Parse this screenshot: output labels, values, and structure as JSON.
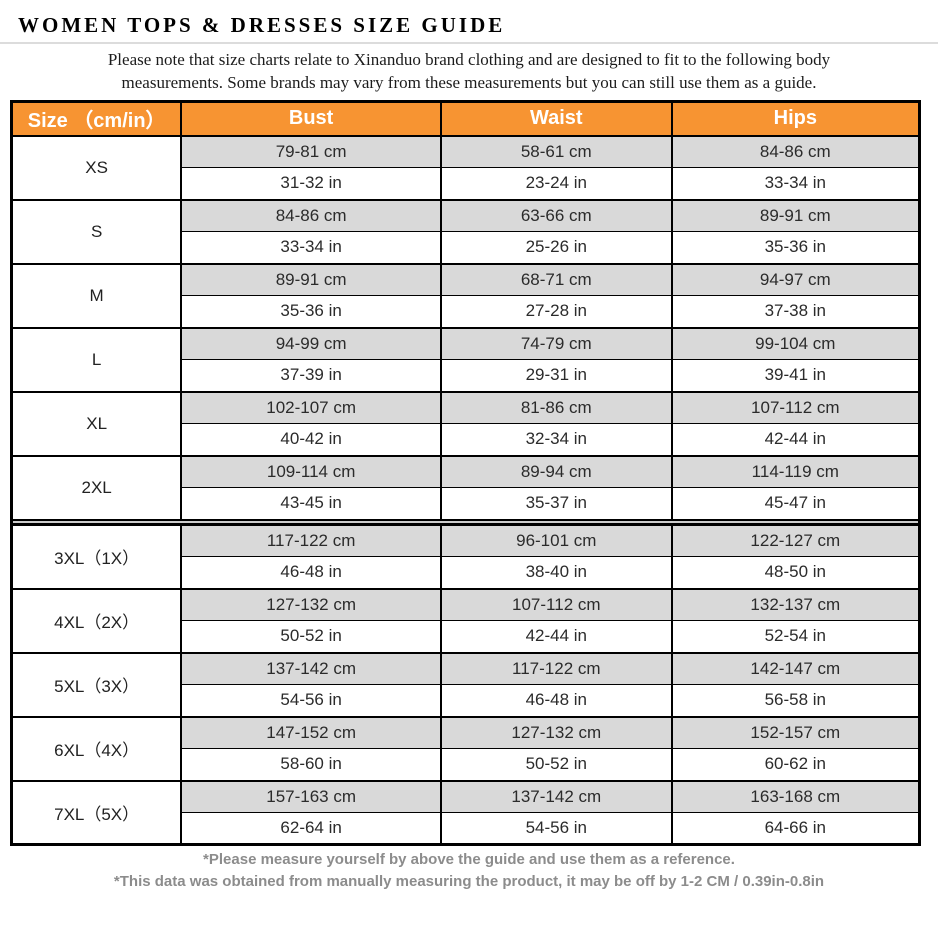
{
  "page": {
    "title": "WOMEN TOPS & DRESSES SIZE GUIDE",
    "note_line1": "Please note that size charts relate to  Xinanduo brand clothing and are designed to fit to the following body",
    "note_line2": "measurements. Some brands may vary from these measurements but you can still use them as a guide."
  },
  "colors": {
    "header_orange": "#f79432",
    "row_gray": "#d9d9d9",
    "border_black": "#000000",
    "footer_gray": "#8c8c8c"
  },
  "table": {
    "headers": [
      "Size （cm/in）",
      "Bust",
      "Waist",
      "Hips"
    ],
    "rows": [
      {
        "size": "XS",
        "cm": [
          "79-81 cm",
          "58-61 cm",
          "84-86 cm"
        ],
        "in": [
          "31-32 in",
          "23-24 in",
          "33-34 in"
        ]
      },
      {
        "size": "S",
        "cm": [
          "84-86 cm",
          "63-66 cm",
          "89-91 cm"
        ],
        "in": [
          "33-34 in",
          "25-26 in",
          "35-36 in"
        ]
      },
      {
        "size": "M",
        "cm": [
          "89-91 cm",
          "68-71 cm",
          "94-97 cm"
        ],
        "in": [
          "35-36 in",
          "27-28 in",
          "37-38 in"
        ]
      },
      {
        "size": "L",
        "cm": [
          "94-99 cm",
          "74-79 cm",
          "99-104 cm"
        ],
        "in": [
          "37-39 in",
          "29-31 in",
          "39-41 in"
        ]
      },
      {
        "size": "XL",
        "cm": [
          "102-107 cm",
          "81-86 cm",
          "107-112 cm"
        ],
        "in": [
          "40-42 in",
          "32-34 in",
          "42-44 in"
        ]
      },
      {
        "size": "2XL",
        "cm": [
          "109-114 cm",
          "89-94 cm",
          "114-119 cm"
        ],
        "in": [
          "43-45 in",
          "35-37 in",
          "45-47 in"
        ]
      },
      {
        "size": "3XL（1X）",
        "cm": [
          "117-122 cm",
          "96-101 cm",
          "122-127 cm"
        ],
        "in": [
          "46-48 in",
          "38-40 in",
          "48-50 in"
        ]
      },
      {
        "size": "4XL（2X）",
        "cm": [
          "127-132 cm",
          "107-112 cm",
          "132-137 cm"
        ],
        "in": [
          "50-52 in",
          "42-44 in",
          "52-54 in"
        ]
      },
      {
        "size": "5XL（3X）",
        "cm": [
          "137-142 cm",
          "117-122 cm",
          "142-147 cm"
        ],
        "in": [
          "54-56 in",
          "46-48 in",
          "56-58 in"
        ]
      },
      {
        "size": "6XL（4X）",
        "cm": [
          "147-152 cm",
          "127-132 cm",
          "152-157 cm"
        ],
        "in": [
          "58-60 in",
          "50-52 in",
          "60-62 in"
        ]
      },
      {
        "size": "7XL（5X）",
        "cm": [
          "157-163 cm",
          "137-142 cm",
          "163-168 cm"
        ],
        "in": [
          "62-64 in",
          "54-56 in",
          "64-66 in"
        ]
      }
    ]
  },
  "footer": {
    "note1": "*Please measure yourself by above the guide and use them as a reference.",
    "note2": "*This data was obtained from manually measuring the product, it may be off by 1-2 CM / 0.39in-0.8in"
  }
}
